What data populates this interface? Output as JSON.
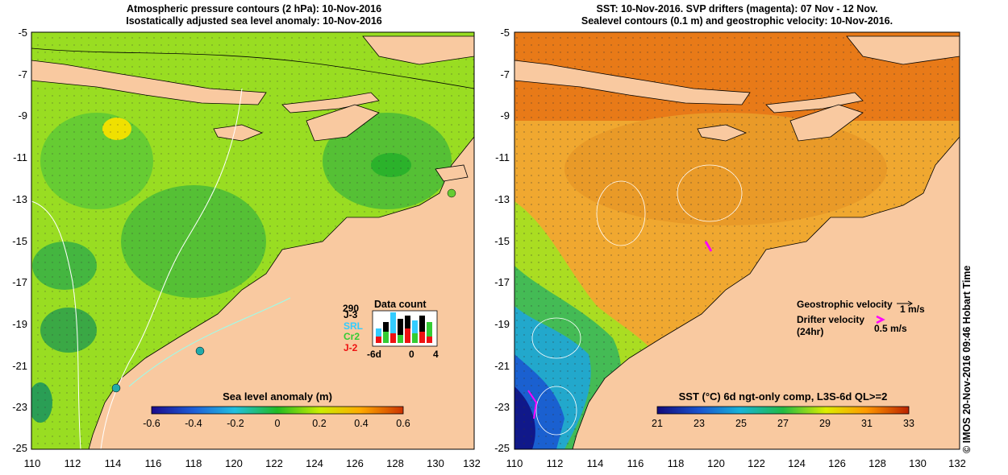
{
  "left_panel": {
    "title_line1": "Atmospheric pressure contours (2 hPa): 10-Nov-2016",
    "title_line2": "Isostatically adjusted sea level anomaly: 10-Nov-2016",
    "y_ticks": [
      "-5",
      "-7",
      "-9",
      "-11",
      "-13",
      "-15",
      "-17",
      "-19",
      "-21",
      "-23",
      "-25"
    ],
    "x_ticks": [
      "110",
      "112",
      "114",
      "116",
      "118",
      "120",
      "122",
      "124",
      "126",
      "128",
      "130",
      "132"
    ],
    "colorbar_title": "Sea level anomaly (m)",
    "colorbar_ticks": [
      "-0.6",
      "-0.4",
      "-0.2",
      "0",
      "0.2",
      "0.4",
      "0.6"
    ],
    "data_count": {
      "title": "Data count",
      "max": "290",
      "missions": [
        "J-3",
        "SRL",
        "Cr2",
        "J-2"
      ],
      "mission_colors": [
        "#000000",
        "#33ccff",
        "#33cc33",
        "#ee1111"
      ],
      "axis_ticks": [
        "-6d",
        "0",
        "4"
      ]
    }
  },
  "right_panel": {
    "title_line1": "SST: 10-Nov-2016. SVP drifters (magenta): 07 Nov - 12 Nov.",
    "title_line2": "Sealevel contours (0.1 m) and geostrophic velocity: 10-Nov-2016.",
    "y_ticks": [
      "-5",
      "-7",
      "-9",
      "-11",
      "-13",
      "-15",
      "-17",
      "-19",
      "-21",
      "-23",
      "-25"
    ],
    "x_ticks": [
      "110",
      "112",
      "114",
      "116",
      "118",
      "120",
      "122",
      "124",
      "126",
      "128",
      "130",
      "132"
    ],
    "colorbar_title": "SST (°C) 6d ngt-only comp, L3S-6d QL>=2",
    "colorbar_ticks": [
      "21",
      "23",
      "25",
      "27",
      "29",
      "31",
      "33"
    ],
    "legend": {
      "geo_label": "Geostrophic velocity",
      "geo_scale": "1 m/s",
      "drifter_label_1": "Drifter velocity",
      "drifter_label_2": "(24hr)",
      "drifter_scale": "0.5 m/s"
    }
  },
  "credit": "© IMOS 20-Nov-2016 09:46 Hobart Time",
  "colors": {
    "land": "#f9c9a0",
    "drifter": "#ff00ff"
  }
}
